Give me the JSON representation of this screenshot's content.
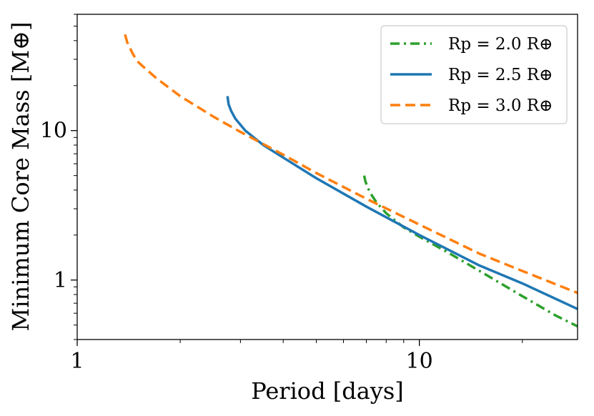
{
  "chart_data": {
    "type": "line",
    "xscale": "log",
    "yscale": "log",
    "xlabel": "Period [days]",
    "ylabel": "Minimum Core Mass [M⊕]",
    "xlim": [
      1,
      29
    ],
    "ylim": [
      0.4,
      60
    ],
    "xticks": [
      {
        "value": 1,
        "label": "1"
      },
      {
        "value": 10,
        "label": "10"
      }
    ],
    "yticks": [
      {
        "value": 1,
        "label": "1"
      },
      {
        "value": 10,
        "label": "10"
      }
    ],
    "legend_position": "top-right",
    "series": [
      {
        "name": "R_p = 2.0 R⊕",
        "legend_label": "Rp = 2.0 R⊕",
        "color": "#2ca02c",
        "linestyle": "dashdot",
        "x": [
          6.9,
          6.95,
          7.05,
          7.2,
          7.5,
          8.0,
          9.0,
          10.0,
          12.0,
          15.0,
          20.0,
          25.0,
          29.0
        ],
        "y": [
          5.0,
          4.6,
          4.2,
          3.8,
          3.3,
          2.8,
          2.25,
          1.95,
          1.55,
          1.15,
          0.78,
          0.58,
          0.49
        ]
      },
      {
        "name": "R_p = 2.5 R⊕",
        "legend_label": "Rp = 2.5 R⊕",
        "color": "#1f77b4",
        "linestyle": "solid",
        "x": [
          2.75,
          2.77,
          2.82,
          2.9,
          3.1,
          3.5,
          4.0,
          5.0,
          7.0,
          10.0,
          15.0,
          20.0,
          29.0
        ],
        "y": [
          17.0,
          15.0,
          13.5,
          12.0,
          10.0,
          8.0,
          6.6,
          4.8,
          3.1,
          2.0,
          1.25,
          0.95,
          0.64
        ]
      },
      {
        "name": "R_p = 3.0 R⊕",
        "legend_label": "Rp = 3.0 R⊕",
        "color": "#ff7f0e",
        "linestyle": "dashed",
        "x": [
          1.38,
          1.4,
          1.45,
          1.5,
          1.7,
          2.0,
          2.5,
          3.0,
          4.0,
          5.0,
          7.0,
          10.0,
          15.0,
          20.0,
          29.0
        ],
        "y": [
          44.0,
          39.0,
          33.0,
          29.0,
          22.5,
          17.0,
          12.4,
          9.8,
          6.9,
          5.2,
          3.5,
          2.35,
          1.5,
          1.15,
          0.82
        ]
      }
    ]
  }
}
